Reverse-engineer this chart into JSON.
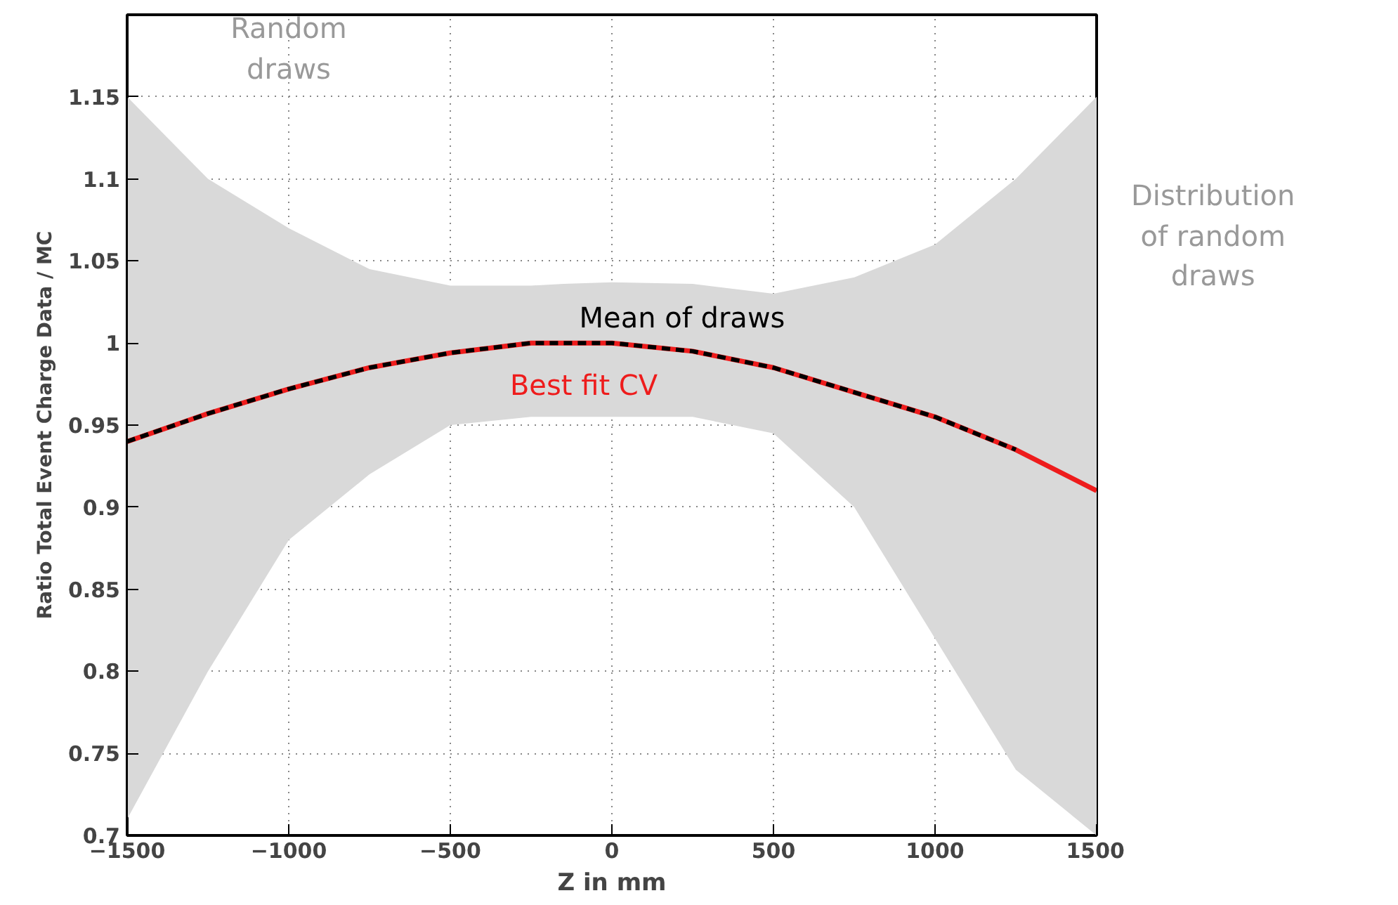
{
  "chart_data": {
    "type": "line",
    "xlabel": "Z in mm",
    "ylabel": "Ratio Total Event Charge Data / MC",
    "x": [
      -1500,
      -1250,
      -1000,
      -750,
      -500,
      -250,
      -150,
      0,
      250,
      500,
      750,
      1000,
      1250,
      1500
    ],
    "series": [
      {
        "name": "Best fit CV",
        "color": "#ee1c1c",
        "line_style": "solid",
        "values": [
          0.94,
          0.957,
          0.972,
          0.985,
          0.994,
          1.0,
          1.0,
          1.0,
          0.995,
          0.985,
          0.97,
          0.955,
          0.935,
          0.91
        ]
      },
      {
        "name": "Mean of draws",
        "color": "#000000",
        "line_style": "dashed",
        "values": [
          0.94,
          0.957,
          0.972,
          0.985,
          0.994,
          1.0,
          1.0,
          1.0,
          0.995,
          0.985,
          0.97,
          0.955,
          0.935,
          null
        ],
        "lower": [
          0.71,
          0.8,
          0.88,
          0.92,
          0.95,
          0.955,
          0.955,
          0.955,
          0.955,
          0.945,
          0.9,
          0.82,
          0.74,
          0.7
        ],
        "upper": [
          1.15,
          1.1,
          1.07,
          1.045,
          1.035,
          1.035,
          1.036,
          1.037,
          1.036,
          1.03,
          1.04,
          1.06,
          1.1,
          1.15
        ]
      }
    ],
    "annotations": [
      "Random draws",
      "Distribution of random draws"
    ],
    "xlim": [
      -1500,
      1500
    ],
    "ylim": [
      0.7,
      1.2
    ],
    "xticks": [
      -1500,
      -1000,
      -500,
      0,
      500,
      1000,
      1500
    ],
    "yticks": [
      0.7,
      0.75,
      0.8,
      0.85,
      0.9,
      0.95,
      1,
      1.05,
      1.1,
      1.15
    ],
    "grid": true
  }
}
